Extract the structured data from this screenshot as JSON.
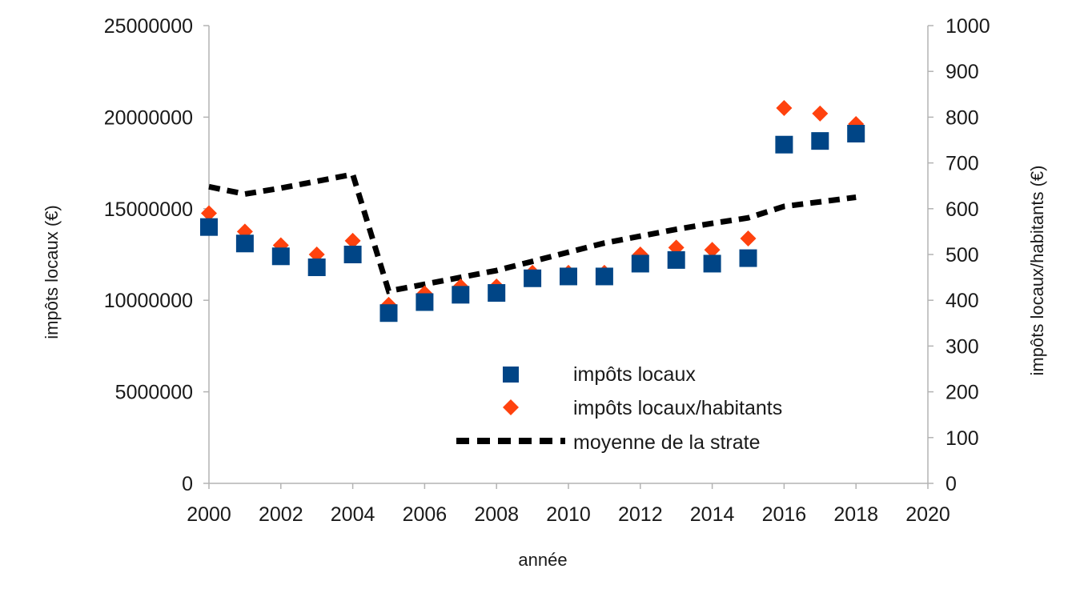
{
  "chart_data": {
    "type": "scatter",
    "xlabel": "année",
    "ylabel_left": "impôts locaux (€)",
    "ylabel_right": "impôts locaux/habitants (€)",
    "xlim": [
      2000,
      2020
    ],
    "xticks": [
      "2000",
      "2002",
      "2004",
      "2006",
      "2008",
      "2010",
      "2012",
      "2014",
      "2016",
      "2018",
      "2020"
    ],
    "ylim_left": [
      0,
      25000000
    ],
    "yticks_left": [
      "0",
      "5000000",
      "10000000",
      "15000000",
      "20000000",
      "25000000"
    ],
    "ylim_right": [
      0,
      1000
    ],
    "yticks_right": [
      "0",
      "100",
      "200",
      "300",
      "400",
      "500",
      "600",
      "700",
      "800",
      "900",
      "1000"
    ],
    "grid": false,
    "legend_position": "center-bottom",
    "series": [
      {
        "name": "impôts locaux",
        "axis": "left",
        "marker": "square",
        "color": "#004586",
        "x": [
          2000,
          2001,
          2002,
          2003,
          2004,
          2005,
          2006,
          2007,
          2008,
          2009,
          2010,
          2011,
          2012,
          2013,
          2014,
          2015,
          2016,
          2017,
          2018
        ],
        "y": [
          14000000,
          13100000,
          12400000,
          11800000,
          12500000,
          9300000,
          9900000,
          10300000,
          10400000,
          11200000,
          11300000,
          11300000,
          12000000,
          12200000,
          12000000,
          12300000,
          18500000,
          18700000,
          19100000
        ]
      },
      {
        "name": "impôts locaux/habitants",
        "axis": "right",
        "marker": "diamond",
        "color": "#ff420e",
        "x": [
          2000,
          2001,
          2002,
          2003,
          2004,
          2005,
          2006,
          2007,
          2008,
          2009,
          2010,
          2011,
          2012,
          2013,
          2014,
          2015,
          2016,
          2017,
          2018
        ],
        "y": [
          590,
          550,
          520,
          500,
          530,
          390,
          415,
          430,
          430,
          460,
          460,
          460,
          500,
          515,
          510,
          535,
          820,
          808,
          785
        ]
      },
      {
        "name": "moyenne de la strate",
        "axis": "right",
        "marker": "dashed-line",
        "color": "#000000",
        "x": [
          2000,
          2001,
          2002,
          2003,
          2004,
          2005,
          2006,
          2007,
          2008,
          2009,
          2010,
          2011,
          2012,
          2013,
          2014,
          2015,
          2016,
          2017,
          2018
        ],
        "y": [
          648,
          632,
          645,
          660,
          675,
          420,
          435,
          450,
          465,
          485,
          505,
          525,
          540,
          555,
          568,
          580,
          605,
          615,
          625
        ]
      }
    ]
  }
}
